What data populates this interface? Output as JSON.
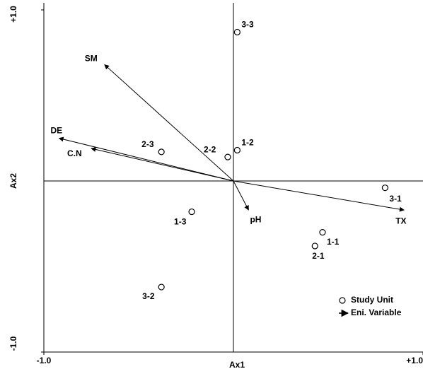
{
  "chart_data": {
    "type": "biplot",
    "xlabel": "Ax1",
    "ylabel": "Ax2",
    "xlim": [
      -1,
      1
    ],
    "ylim": [
      -1,
      1
    ],
    "xticks": [
      {
        "value": -1,
        "label": "-1.0"
      },
      {
        "value": 1,
        "label": "+1.0"
      }
    ],
    "yticks": [
      {
        "value": -1,
        "label": "-1.0"
      },
      {
        "value": 1,
        "label": "+1.0"
      }
    ],
    "legend": "lower right",
    "points": {
      "name": "Study Unit",
      "color": "#000000",
      "labels": [
        "3-3",
        "1-2",
        "2-2",
        "2-3",
        "1-3",
        "3-2",
        "1-1",
        "2-1",
        "3-1"
      ],
      "x": [
        0.02,
        0.02,
        -0.03,
        -0.38,
        -0.22,
        -0.38,
        0.47,
        0.43,
        0.8
      ],
      "y": [
        0.87,
        0.18,
        0.14,
        0.17,
        -0.18,
        -0.62,
        -0.3,
        -0.38,
        -0.04
      ]
    },
    "vectors": {
      "name": "Eni. Variable",
      "color": "#000000",
      "labels": [
        "SM",
        "DE",
        "C.N",
        "pH",
        "TX"
      ],
      "x": [
        -0.68,
        -0.92,
        -0.75,
        0.08,
        0.9
      ],
      "y": [
        0.68,
        0.25,
        0.19,
        -0.17,
        -0.17
      ]
    }
  }
}
